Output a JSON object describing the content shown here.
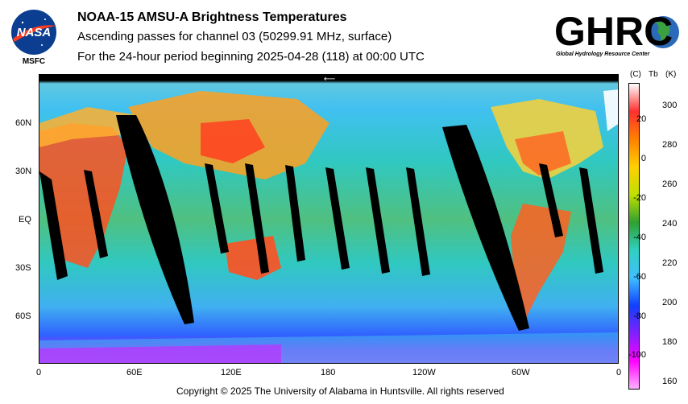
{
  "header": {
    "title": "NOAA-15 AMSU-A Brightness Temperatures",
    "line2": "Ascending passes for channel 03 (50299.91 MHz, surface)",
    "line3": "For the 24-hour period beginning 2025-04-28 (118) at 00:00 UTC"
  },
  "logos": {
    "nasa_text": "NASA",
    "msfc_text": "MSFC",
    "ghrc_text": "GHRC",
    "ghrc_subtitle": "Global Hydrology Resource Center"
  },
  "map": {
    "lat_labels": [
      "60N",
      "30N",
      "EQ",
      "30S",
      "60S"
    ],
    "lon_labels": [
      "0",
      "60E",
      "120E",
      "180",
      "120W",
      "60W",
      "0"
    ],
    "arrow_glyph": "⟵"
  },
  "colorbar": {
    "header_c": "(C)",
    "header_tb": "Tb",
    "header_k": "(K)",
    "celsius_ticks": [
      "20",
      "0",
      "-20",
      "-40",
      "-60",
      "-80",
      "-100"
    ],
    "kelvin_ticks": [
      "300",
      "280",
      "260",
      "240",
      "220",
      "200",
      "180",
      "160"
    ],
    "colors": [
      "#ffffff",
      "#ff3030",
      "#ff8000",
      "#ffd000",
      "#c0e000",
      "#30a030",
      "#30d0c0",
      "#40c0ff",
      "#1040ff",
      "#8020ff",
      "#ff00ff",
      "#ffb0ff"
    ]
  },
  "footer": {
    "copyright": "Copyright © 2025 The University of Alabama in Huntsville.  All rights reserved"
  }
}
